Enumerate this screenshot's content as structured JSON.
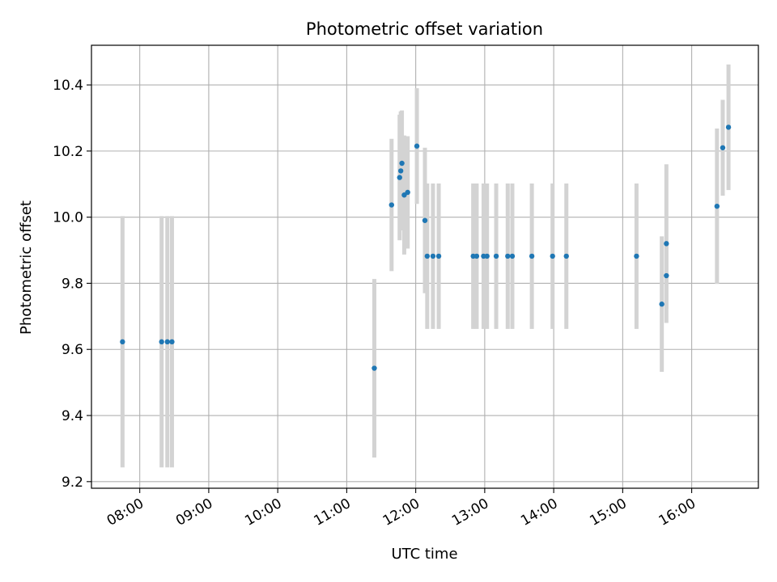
{
  "chart_data": {
    "type": "scatter",
    "title": "Photometric offset variation",
    "xlabel": "UTC time",
    "ylabel": "Photometric offset",
    "xlim": [
      "07:18",
      "16:58"
    ],
    "ylim": [
      9.18,
      10.52
    ],
    "xticks": [
      "08:00",
      "09:00",
      "10:00",
      "11:00",
      "12:00",
      "13:00",
      "14:00",
      "15:00",
      "16:00"
    ],
    "yticks": [
      "9.2",
      "9.4",
      "9.6",
      "9.8",
      "10.0",
      "10.2",
      "10.4"
    ],
    "grid": true,
    "colors": {
      "point": "#1f77b4",
      "errorbar": "#d3d3d3",
      "grid": "#b0b0b0"
    },
    "series": [
      {
        "points": [
          {
            "x": "07:45",
            "y": 9.623,
            "err": 0.38
          },
          {
            "x": "08:19",
            "y": 9.623,
            "err": 0.38
          },
          {
            "x": "08:24",
            "y": 9.623,
            "err": 0.38
          },
          {
            "x": "08:28",
            "y": 9.623,
            "err": 0.38
          },
          {
            "x": "11:24",
            "y": 9.543,
            "err": 0.27
          },
          {
            "x": "11:39",
            "y": 10.037,
            "err": 0.2
          },
          {
            "x": "11:46",
            "y": 10.12,
            "err": 0.19
          },
          {
            "x": "11:47",
            "y": 10.14,
            "err": 0.18
          },
          {
            "x": "11:48",
            "y": 10.163,
            "err": 0.16
          },
          {
            "x": "11:50",
            "y": 10.067,
            "err": 0.18
          },
          {
            "x": "11:53",
            "y": 10.075,
            "err": 0.17
          },
          {
            "x": "12:01",
            "y": 10.215,
            "err": 0.175
          },
          {
            "x": "12:08",
            "y": 9.99,
            "err": 0.22
          },
          {
            "x": "12:10",
            "y": 9.882,
            "err": 0.22
          },
          {
            "x": "12:15",
            "y": 9.882,
            "err": 0.22
          },
          {
            "x": "12:20",
            "y": 9.882,
            "err": 0.22
          },
          {
            "x": "12:50",
            "y": 9.882,
            "err": 0.22
          },
          {
            "x": "12:53",
            "y": 9.882,
            "err": 0.22
          },
          {
            "x": "12:59",
            "y": 9.882,
            "err": 0.22
          },
          {
            "x": "13:02",
            "y": 9.882,
            "err": 0.22
          },
          {
            "x": "13:10",
            "y": 9.882,
            "err": 0.22
          },
          {
            "x": "13:20",
            "y": 9.882,
            "err": 0.22
          },
          {
            "x": "13:24",
            "y": 9.882,
            "err": 0.22
          },
          {
            "x": "13:41",
            "y": 9.882,
            "err": 0.22
          },
          {
            "x": "13:59",
            "y": 9.882,
            "err": 0.22
          },
          {
            "x": "14:11",
            "y": 9.882,
            "err": 0.22
          },
          {
            "x": "15:12",
            "y": 9.882,
            "err": 0.22
          },
          {
            "x": "15:34",
            "y": 9.737,
            "err": 0.205
          },
          {
            "x": "15:38",
            "y": 9.92,
            "err": 0.24
          },
          {
            "x": "15:38",
            "y": 9.823,
            "err": 0.1
          },
          {
            "x": "16:22",
            "y": 10.033,
            "err": 0.235
          },
          {
            "x": "16:27",
            "y": 10.21,
            "err": 0.145
          },
          {
            "x": "16:32",
            "y": 10.272,
            "err": 0.19
          }
        ]
      }
    ]
  }
}
